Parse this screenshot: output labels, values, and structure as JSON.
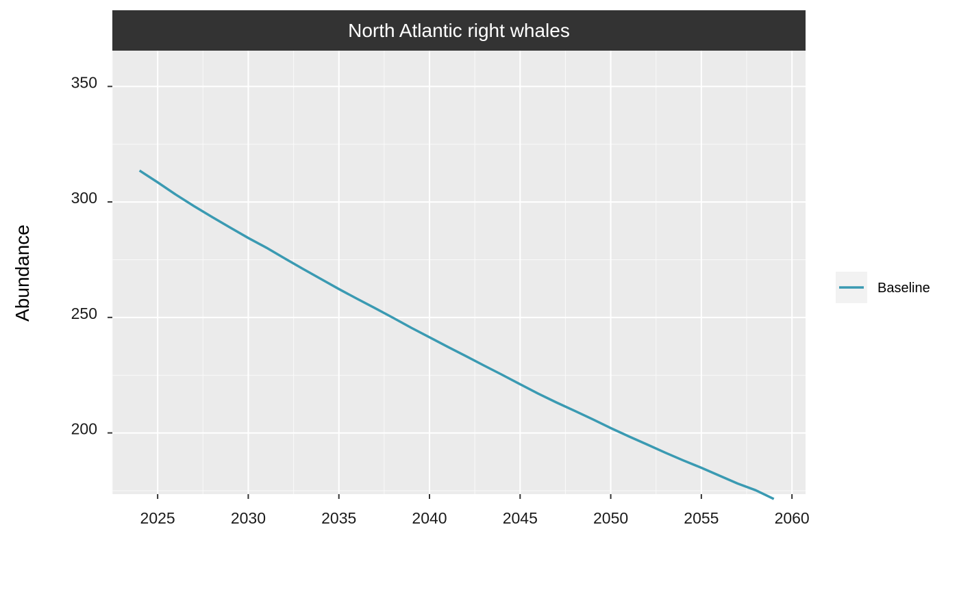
{
  "chart_data": {
    "type": "line",
    "facet_title": "North Atlantic right whales",
    "xlabel": "",
    "ylabel": "Abundance",
    "xlim": [
      2022.5,
      2060.75
    ],
    "ylim": [
      173.5,
      365.5
    ],
    "x_ticks": [
      2025,
      2030,
      2035,
      2040,
      2045,
      2050,
      2055,
      2060
    ],
    "y_ticks": [
      200,
      250,
      300,
      350
    ],
    "grid": true,
    "legend": {
      "placement": "right",
      "entries": [
        "Baseline"
      ]
    },
    "series": [
      {
        "name": "Baseline",
        "color": "#3a9ab2",
        "x": [
          2024,
          2025,
          2026,
          2027,
          2028,
          2029,
          2030,
          2031,
          2032,
          2033,
          2034,
          2035,
          2036,
          2037,
          2038,
          2039,
          2040,
          2041,
          2042,
          2043,
          2044,
          2045,
          2046,
          2047,
          2048,
          2049,
          2050,
          2051,
          2052,
          2053,
          2054,
          2055,
          2056,
          2057,
          2058,
          2059
        ],
        "y": [
          313.6,
          308.5,
          303.2,
          298.2,
          293.5,
          288.9,
          284.4,
          280.2,
          275.6,
          271.1,
          266.7,
          262.3,
          258.1,
          254.0,
          249.8,
          245.5,
          241.4,
          237.3,
          233.3,
          229.2,
          225.2,
          221.1,
          217.0,
          213.2,
          209.6,
          205.9,
          202.1,
          198.5,
          195.0,
          191.5,
          188.1,
          184.9,
          181.5,
          178.1,
          175.2,
          171.4
        ]
      }
    ]
  }
}
